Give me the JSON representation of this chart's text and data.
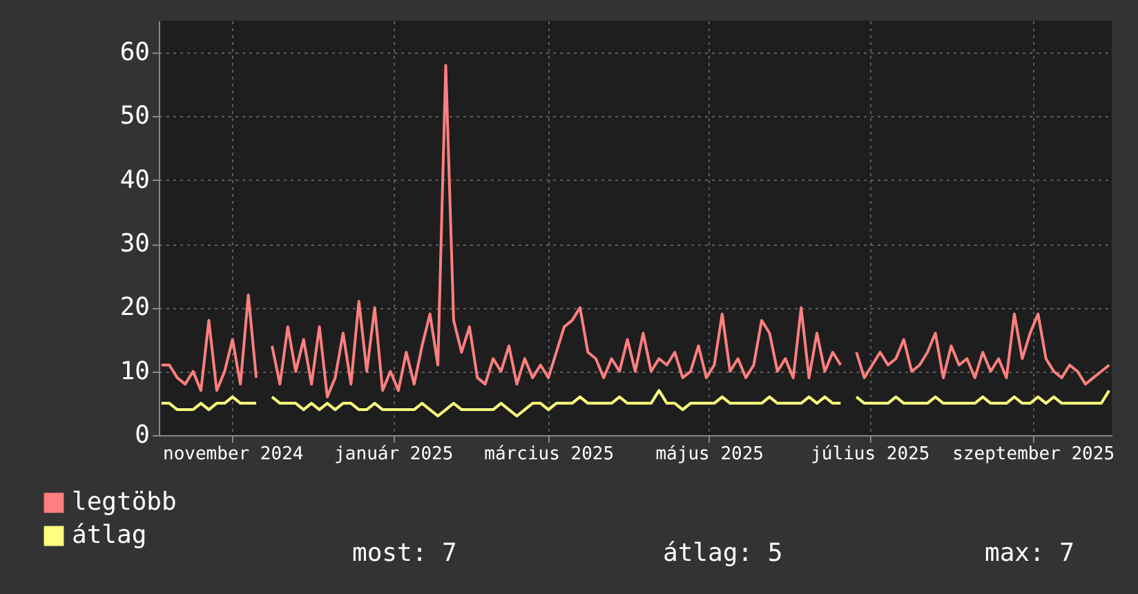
{
  "chart_data": {
    "type": "line",
    "x": [
      "2024-10-05",
      "2024-10-08",
      "2024-10-11",
      "2024-10-14",
      "2024-10-17",
      "2024-10-20",
      "2024-10-23",
      "2024-10-26",
      "2024-10-29",
      "2024-11-01",
      "2024-11-04",
      "2024-11-07",
      "2024-11-10",
      "2024-11-13",
      "2024-11-16",
      "2024-11-19",
      "2024-11-22",
      "2024-11-25",
      "2024-11-28",
      "2024-12-01",
      "2024-12-04",
      "2024-12-07",
      "2024-12-10",
      "2024-12-13",
      "2024-12-16",
      "2024-12-19",
      "2024-12-22",
      "2024-12-25",
      "2024-12-28",
      "2024-12-31",
      "2025-01-03",
      "2025-01-06",
      "2025-01-09",
      "2025-01-12",
      "2025-01-15",
      "2025-01-18",
      "2025-01-21",
      "2025-01-24",
      "2025-01-27",
      "2025-01-30",
      "2025-02-02",
      "2025-02-05",
      "2025-02-08",
      "2025-02-11",
      "2025-02-14",
      "2025-02-17",
      "2025-02-20",
      "2025-02-23",
      "2025-02-26",
      "2025-03-01",
      "2025-03-04",
      "2025-03-07",
      "2025-03-10",
      "2025-03-13",
      "2025-03-16",
      "2025-03-19",
      "2025-03-22",
      "2025-03-25",
      "2025-03-28",
      "2025-03-31",
      "2025-04-03",
      "2025-04-06",
      "2025-04-09",
      "2025-04-12",
      "2025-04-15",
      "2025-04-18",
      "2025-04-21",
      "2025-04-24",
      "2025-04-27",
      "2025-04-30",
      "2025-05-03",
      "2025-05-06",
      "2025-05-09",
      "2025-05-12",
      "2025-05-15",
      "2025-05-18",
      "2025-05-21",
      "2025-05-24",
      "2025-05-27",
      "2025-05-30",
      "2025-06-02",
      "2025-06-05",
      "2025-06-08",
      "2025-06-11",
      "2025-06-14",
      "2025-06-17",
      "2025-06-20",
      "2025-06-23",
      "2025-06-26",
      "2025-06-29",
      "2025-07-02",
      "2025-07-05",
      "2025-07-08",
      "2025-07-11",
      "2025-07-14",
      "2025-07-17",
      "2025-07-20",
      "2025-07-23",
      "2025-07-26",
      "2025-07-29",
      "2025-08-01",
      "2025-08-04",
      "2025-08-07",
      "2025-08-10",
      "2025-08-13",
      "2025-08-16",
      "2025-08-19",
      "2025-08-22",
      "2025-08-25",
      "2025-08-28",
      "2025-08-31",
      "2025-09-03",
      "2025-09-06",
      "2025-09-09",
      "2025-09-12",
      "2025-09-15",
      "2025-09-18",
      "2025-09-21",
      "2025-09-24",
      "2025-09-27",
      "2025-09-30"
    ],
    "series": [
      {
        "name": "legtöbb",
        "color": "#ff7f7f",
        "values": [
          11,
          11,
          9,
          8,
          10,
          7,
          18,
          7,
          10,
          15,
          8,
          22,
          9,
          null,
          14,
          8,
          17,
          10,
          15,
          8,
          17,
          6,
          9,
          16,
          8,
          21,
          10,
          20,
          7,
          10,
          7,
          13,
          8,
          14,
          19,
          11,
          58,
          18,
          13,
          17,
          9,
          8,
          12,
          10,
          14,
          8,
          12,
          9,
          11,
          9,
          13,
          17,
          18,
          20,
          13,
          12,
          9,
          12,
          10,
          15,
          10,
          16,
          10,
          12,
          11,
          13,
          9,
          10,
          14,
          9,
          11,
          19,
          10,
          12,
          9,
          11,
          18,
          16,
          10,
          12,
          9,
          20,
          9,
          16,
          10,
          13,
          11,
          null,
          13,
          9,
          11,
          13,
          11,
          12,
          15,
          10,
          11,
          13,
          16,
          9,
          14,
          11,
          12,
          9,
          13,
          10,
          12,
          9,
          19,
          12,
          16,
          19,
          12,
          10,
          9,
          11,
          10,
          8,
          9,
          10,
          11
        ]
      },
      {
        "name": "átlag",
        "color": "#ffff7f",
        "values": [
          5,
          5,
          4,
          4,
          4,
          5,
          4,
          5,
          5,
          6,
          5,
          5,
          5,
          null,
          6,
          5,
          5,
          5,
          4,
          5,
          4,
          5,
          4,
          5,
          5,
          4,
          4,
          5,
          4,
          4,
          4,
          4,
          4,
          5,
          4,
          3,
          4,
          5,
          4,
          4,
          4,
          4,
          4,
          5,
          4,
          3,
          4,
          5,
          5,
          4,
          5,
          5,
          5,
          6,
          5,
          5,
          5,
          5,
          6,
          5,
          5,
          5,
          5,
          7,
          5,
          5,
          4,
          5,
          5,
          5,
          5,
          6,
          5,
          5,
          5,
          5,
          5,
          6,
          5,
          5,
          5,
          5,
          6,
          5,
          6,
          5,
          5,
          null,
          6,
          5,
          5,
          5,
          5,
          6,
          5,
          5,
          5,
          5,
          6,
          5,
          5,
          5,
          5,
          5,
          6,
          5,
          5,
          5,
          6,
          5,
          5,
          6,
          5,
          6,
          5,
          5,
          5,
          5,
          5,
          5,
          7
        ]
      }
    ],
    "xlim": [
      "2024-10-04",
      "2025-10-01"
    ],
    "xticks": [
      {
        "value": "2024-11-01",
        "label": "november 2024"
      },
      {
        "value": "2025-01-01",
        "label": "január 2025"
      },
      {
        "value": "2025-03-01",
        "label": "március 2025"
      },
      {
        "value": "2025-05-01",
        "label": "május 2025"
      },
      {
        "value": "2025-07-01",
        "label": "július 2025"
      },
      {
        "value": "2025-09-01",
        "label": "szeptember 2025"
      }
    ],
    "ylim": [
      0,
      65
    ],
    "yticks": [
      0,
      10,
      20,
      30,
      40,
      50,
      60
    ],
    "grid": true,
    "legend": "bottom left",
    "line_style": "solid",
    "annotations": [
      "most: 7",
      "átlag: 5",
      "max: 7"
    ]
  }
}
